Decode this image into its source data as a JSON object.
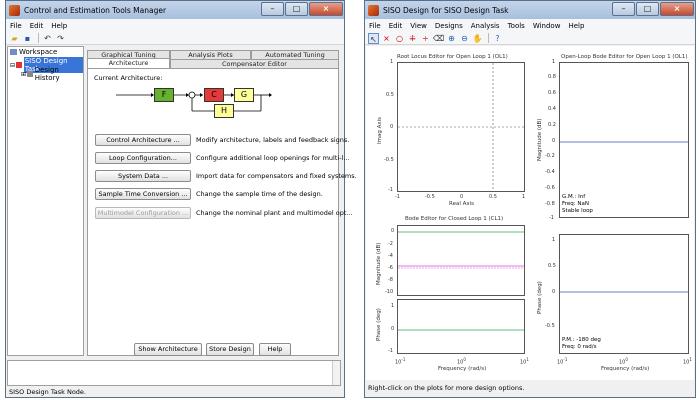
{
  "left_window": {
    "title": "Control and Estimation Tools Manager",
    "menu": [
      "File",
      "Edit",
      "Help"
    ],
    "tree": {
      "workspace": "Workspace",
      "task": "SISO Design Task",
      "history": "Design History"
    },
    "tabs_back": [
      "Graphical Tuning",
      "Analysis Plots",
      "Automated Tuning"
    ],
    "tabs_front": [
      "Architecture",
      "Compensator Editor"
    ],
    "current_arch_label": "Current Architecture:",
    "blocks": {
      "f": "F",
      "c": "C",
      "g": "G",
      "h": "H"
    },
    "buttons": [
      {
        "label": "Control Architecture ...",
        "desc": "Modify architecture, labels and feedback signs."
      },
      {
        "label": "Loop Configuration...",
        "desc": "Configure additional loop openings for multi-l..."
      },
      {
        "label": "System Data ...",
        "desc": "Import data for compensators and fixed systems."
      },
      {
        "label": "Sample Time Conversion ...",
        "desc": "Change the sample time of the design."
      },
      {
        "label": "Multimodel Configuration ...",
        "desc": "Change the nominal plant and multimodel opt..."
      }
    ],
    "bottom_buttons": [
      "Show Architecture",
      "Store Design",
      "Help"
    ],
    "status": "SISO Design Task Node.",
    "colors": {
      "f": "#66b22e",
      "c": "#e43a3a",
      "g": "#ffff9a",
      "h": "#ffff9a"
    }
  },
  "right_window": {
    "title": "SISO Design for SISO Design Task",
    "menu": [
      "File",
      "Edit",
      "View",
      "Designs",
      "Analysis",
      "Tools",
      "Window",
      "Help"
    ],
    "status": "Right-click on the plots for more design options.",
    "rlocus": {
      "title": "Root Locus Editor for Open Loop 1 (OL1)",
      "ylabel": "Imag Axis",
      "xlabel": "Real Axis",
      "yticks": [
        "1",
        "0.5",
        "0",
        "-0.5",
        "-1"
      ],
      "xticks": [
        "-1",
        "-0.5",
        "0",
        "0.5",
        "1"
      ]
    },
    "olbode": {
      "title": "Open-Loop Bode Editor for Open Loop 1 (OL1)",
      "ylabel": "Magnitude (dB)",
      "yticks": [
        "1",
        "0.8",
        "0.6",
        "0.4",
        "0.2",
        "0",
        "-0.2",
        "-0.4",
        "-0.6",
        "-0.8",
        "-1"
      ],
      "notes": [
        "G.M.: Inf",
        "Freq: NaN",
        "Stable loop"
      ]
    },
    "olphase": {
      "ylabel": "Phase (deg)",
      "yticks": [
        "1",
        "0.5",
        "0",
        "-0.5"
      ],
      "notes": [
        "P.M.: -180 deg",
        "Freq: 0 rad/s"
      ],
      "xlabel": "Frequency (rad/s)",
      "xticks": [
        "10",
        "10",
        "10"
      ],
      "xexp": [
        "-1",
        "0",
        "1"
      ]
    },
    "clbode": {
      "title": "Bode Editor for Closed Loop 1 (CL1)",
      "mag_ylabel": "Magnitude (dB)",
      "mag_yticks": [
        "0",
        "-2",
        "-4",
        "-6",
        "-8",
        "-10"
      ],
      "phase_ylabel": "Phase (deg)",
      "phase_yticks": [
        "1",
        "0",
        "-1"
      ],
      "xlabel": "Frequency (rad/s)",
      "xticks": [
        "10",
        "10",
        "10"
      ],
      "xexp": [
        "-1",
        "0",
        "1"
      ]
    }
  }
}
